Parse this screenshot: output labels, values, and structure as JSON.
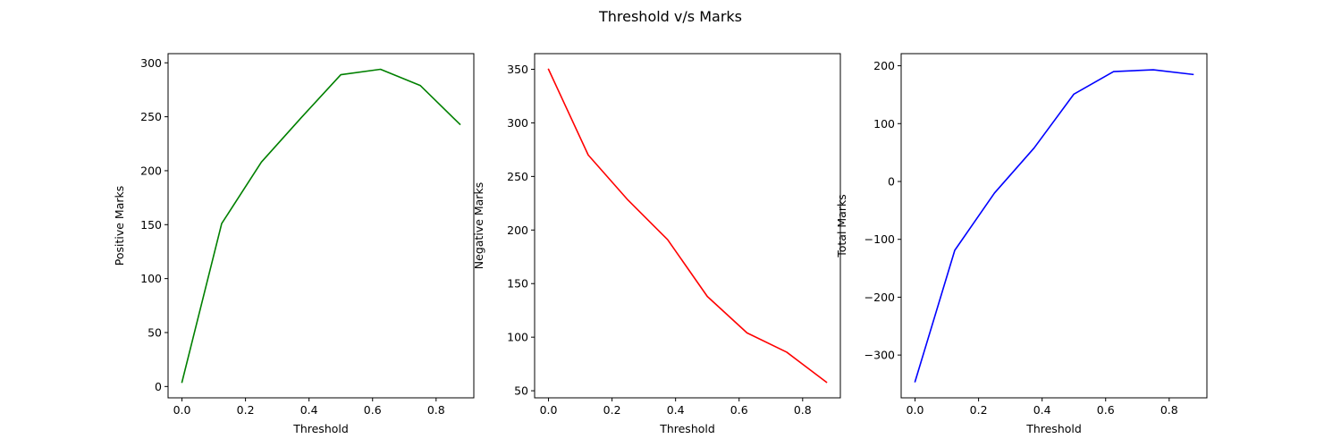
{
  "figure": {
    "title": "Threshold v/s Marks"
  },
  "chart_data": [
    {
      "type": "line",
      "xlabel": "Threshold",
      "ylabel": "Positive Marks",
      "color": "#008000",
      "x": [
        0.0,
        0.125,
        0.25,
        0.375,
        0.5,
        0.625,
        0.75,
        0.875
      ],
      "y": [
        4,
        151,
        208,
        249,
        289,
        294,
        279,
        243
      ],
      "xlim": [
        -0.04375,
        0.91875
      ],
      "ylim": [
        -10.5,
        308.5
      ],
      "xticks": [
        0.0,
        0.2,
        0.4,
        0.6,
        0.8
      ],
      "xtick_labels": [
        "0.0",
        "0.2",
        "0.4",
        "0.6",
        "0.8"
      ],
      "yticks": [
        0,
        50,
        100,
        150,
        200,
        250,
        300
      ],
      "ytick_labels": [
        "0",
        "50",
        "100",
        "150",
        "200",
        "250",
        "300"
      ]
    },
    {
      "type": "line",
      "xlabel": "Threshold",
      "ylabel": "Negative Marks",
      "color": "#ff0000",
      "x": [
        0.0,
        0.125,
        0.25,
        0.375,
        0.5,
        0.625,
        0.75,
        0.875
      ],
      "y": [
        350,
        270,
        228,
        191,
        138,
        104,
        86,
        58
      ],
      "xlim": [
        -0.04375,
        0.91875
      ],
      "ylim": [
        43.4,
        364.6
      ],
      "xticks": [
        0.0,
        0.2,
        0.4,
        0.6,
        0.8
      ],
      "xtick_labels": [
        "0.0",
        "0.2",
        "0.4",
        "0.6",
        "0.8"
      ],
      "yticks": [
        50,
        100,
        150,
        200,
        250,
        300,
        350
      ],
      "ytick_labels": [
        "50",
        "100",
        "150",
        "200",
        "250",
        "300",
        "350"
      ]
    },
    {
      "type": "line",
      "xlabel": "Threshold",
      "ylabel": "Total Marks",
      "color": "#0000ff",
      "x": [
        0.0,
        0.125,
        0.25,
        0.375,
        0.5,
        0.625,
        0.75,
        0.875
      ],
      "y": [
        -346,
        -119,
        -20,
        58,
        151,
        190,
        193,
        185
      ],
      "xlim": [
        -0.04375,
        0.91875
      ],
      "ylim": [
        -373.95,
        220.95
      ],
      "xticks": [
        0.0,
        0.2,
        0.4,
        0.6,
        0.8
      ],
      "xtick_labels": [
        "0.0",
        "0.2",
        "0.4",
        "0.6",
        "0.8"
      ],
      "yticks": [
        -300,
        -200,
        -100,
        0,
        100,
        200
      ],
      "ytick_labels": [
        "−300",
        "−200",
        "−100",
        "0",
        "100",
        "200"
      ]
    }
  ]
}
